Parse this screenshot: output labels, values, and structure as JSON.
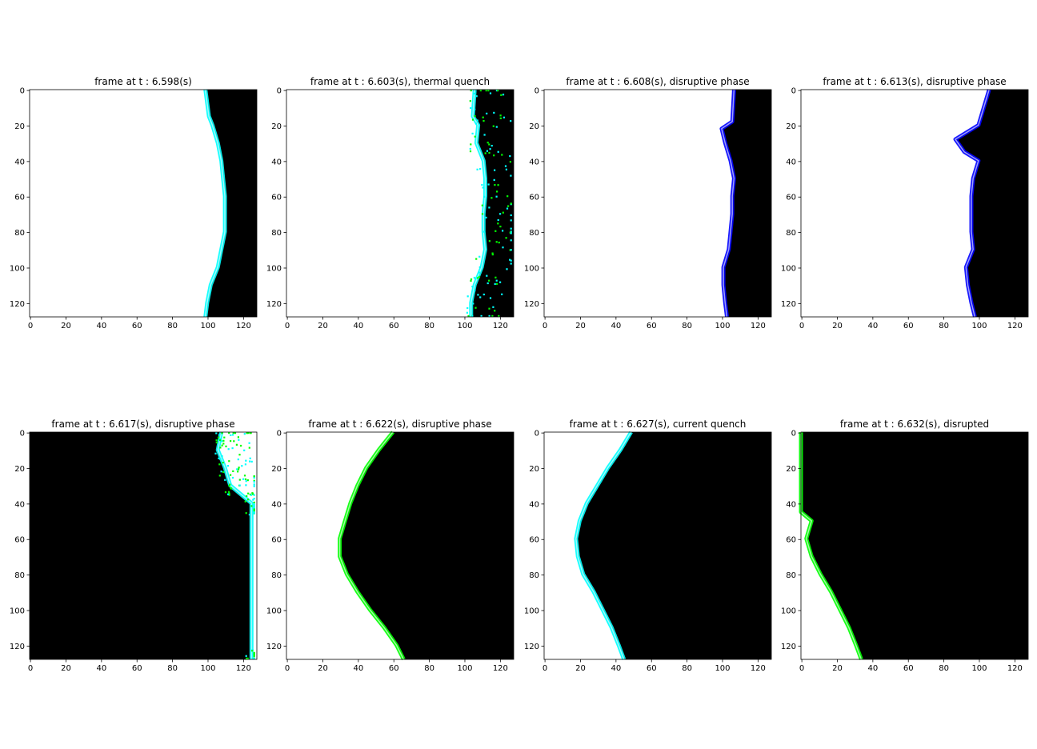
{
  "figure": {
    "panels": [
      {
        "title": "frame at t : 6.598(s)"
      },
      {
        "title": "frame at t : 6.603(s), thermal quench"
      },
      {
        "title": "frame at t : 6.608(s), disruptive phase"
      },
      {
        "title": "frame at t : 6.613(s), disruptive phase"
      },
      {
        "title": "frame at t : 6.617(s), disruptive phase"
      },
      {
        "title": "frame at t : 6.622(s), disruptive phase"
      },
      {
        "title": "frame at t : 6.627(s), current quench"
      },
      {
        "title": "frame at t : 6.632(s), disrupted"
      }
    ]
  },
  "chart_data": {
    "type": "heatmap",
    "layout": "2x4 grid of image frames",
    "frame_size": [
      128,
      128
    ],
    "xlim": [
      0,
      128
    ],
    "ylim": [
      128,
      0
    ],
    "x_ticks": [
      0,
      20,
      40,
      60,
      80,
      100,
      120
    ],
    "y_ticks": [
      0,
      20,
      40,
      60,
      80,
      100,
      120
    ],
    "x_tick_labels": [
      "0",
      "20",
      "40",
      "60",
      "80",
      "100",
      "120"
    ],
    "y_tick_labels": [
      "0",
      "20",
      "40",
      "60",
      "80",
      "100",
      "120"
    ],
    "colors": {
      "dark": "#000000",
      "bright": "#ffffff",
      "cyan": "#00ffff",
      "green": "#00ff00",
      "blue": "#0000ff",
      "magenta": "#ff00ff"
    },
    "frames": [
      {
        "t": 6.598,
        "phase": "",
        "boundary": [
          [
            0,
            99
          ],
          [
            15,
            101
          ],
          [
            20,
            103
          ],
          [
            30,
            106
          ],
          [
            40,
            108
          ],
          [
            50,
            109
          ],
          [
            60,
            110
          ],
          [
            70,
            110
          ],
          [
            80,
            110
          ],
          [
            90,
            108
          ],
          [
            100,
            106
          ],
          [
            110,
            102
          ],
          [
            120,
            100
          ],
          [
            128,
            99
          ]
        ],
        "fill_right": "dark",
        "edge": "cyan"
      },
      {
        "t": 6.603,
        "phase": "thermal quench",
        "boundary": [
          [
            0,
            106
          ],
          [
            15,
            105
          ],
          [
            20,
            108
          ],
          [
            30,
            107
          ],
          [
            40,
            111
          ],
          [
            50,
            112
          ],
          [
            60,
            112
          ],
          [
            70,
            111
          ],
          [
            80,
            111
          ],
          [
            90,
            112
          ],
          [
            100,
            110
          ],
          [
            110,
            106
          ],
          [
            120,
            104
          ],
          [
            128,
            104
          ]
        ],
        "fill_right": "dark",
        "edge": "cyan",
        "texture": "green"
      },
      {
        "t": 6.608,
        "phase": "disruptive phase",
        "boundary": [
          [
            0,
            107
          ],
          [
            18,
            106
          ],
          [
            22,
            100
          ],
          [
            30,
            102
          ],
          [
            40,
            105
          ],
          [
            50,
            107
          ],
          [
            60,
            106
          ],
          [
            70,
            106
          ],
          [
            80,
            105
          ],
          [
            90,
            104
          ],
          [
            100,
            101
          ],
          [
            110,
            101
          ],
          [
            120,
            102
          ],
          [
            128,
            103
          ]
        ],
        "fill_right": "dark",
        "edge": "blue"
      },
      {
        "t": 6.613,
        "phase": "disruptive phase",
        "boundary": [
          [
            0,
            106
          ],
          [
            20,
            100
          ],
          [
            28,
            87
          ],
          [
            35,
            92
          ],
          [
            40,
            100
          ],
          [
            50,
            97
          ],
          [
            60,
            96
          ],
          [
            70,
            96
          ],
          [
            80,
            96
          ],
          [
            90,
            97
          ],
          [
            100,
            93
          ],
          [
            110,
            94
          ],
          [
            120,
            96
          ],
          [
            128,
            98
          ]
        ],
        "fill_right": "dark",
        "edge": "blue"
      },
      {
        "t": 6.617,
        "phase": "disruptive phase",
        "boundary": [
          [
            0,
            108
          ],
          [
            10,
            106
          ],
          [
            20,
            110
          ],
          [
            30,
            113
          ],
          [
            40,
            125
          ],
          [
            128,
            125
          ]
        ],
        "fill_right": "bright",
        "edge": "cyan",
        "texture": "green"
      },
      {
        "t": 6.622,
        "phase": "disruptive phase",
        "boundary": [
          [
            0,
            60
          ],
          [
            10,
            52
          ],
          [
            20,
            45
          ],
          [
            30,
            40
          ],
          [
            40,
            36
          ],
          [
            50,
            33
          ],
          [
            60,
            30
          ],
          [
            70,
            30
          ],
          [
            80,
            34
          ],
          [
            90,
            40
          ],
          [
            100,
            47
          ],
          [
            110,
            55
          ],
          [
            120,
            62
          ],
          [
            128,
            66
          ]
        ],
        "fill_right": "dark",
        "edge": "green"
      },
      {
        "t": 6.627,
        "phase": "current quench",
        "boundary": [
          [
            0,
            49
          ],
          [
            10,
            43
          ],
          [
            20,
            36
          ],
          [
            30,
            30
          ],
          [
            40,
            24
          ],
          [
            50,
            20
          ],
          [
            60,
            18
          ],
          [
            70,
            19
          ],
          [
            80,
            22
          ],
          [
            90,
            28
          ],
          [
            100,
            33
          ],
          [
            110,
            38
          ],
          [
            120,
            42
          ],
          [
            128,
            45
          ]
        ],
        "fill_right": "dark",
        "edge": "cyan"
      },
      {
        "t": 6.632,
        "phase": "disrupted",
        "boundary": [
          [
            0,
            0
          ],
          [
            45,
            0
          ],
          [
            50,
            6
          ],
          [
            60,
            3
          ],
          [
            70,
            6
          ],
          [
            80,
            11
          ],
          [
            90,
            17
          ],
          [
            100,
            22
          ],
          [
            110,
            27
          ],
          [
            120,
            31
          ],
          [
            128,
            34
          ]
        ],
        "fill_right": "dark",
        "edge": "green"
      }
    ]
  }
}
